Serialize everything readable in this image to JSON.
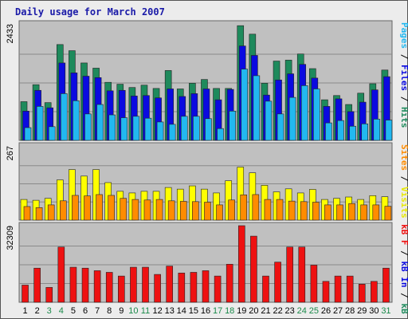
{
  "chart_data": {
    "type": "bar",
    "title": "Daily usage for March 2007",
    "days": [
      "1",
      "2",
      "3",
      "4",
      "5",
      "6",
      "7",
      "8",
      "9",
      "10",
      "11",
      "12",
      "13",
      "14",
      "15",
      "16",
      "17",
      "18",
      "19",
      "20",
      "21",
      "22",
      "23",
      "24",
      "25",
      "26",
      "27",
      "28",
      "29",
      "30",
      "31"
    ],
    "weekend_days": [
      "3",
      "4",
      "10",
      "11",
      "17",
      "18",
      "24",
      "25",
      "31"
    ],
    "colors": {
      "background": "#ececec",
      "panel": "#c0c0c0",
      "title": "#1a1aa8",
      "weekday_label": "#000000",
      "weekend_label": "#1a8a4a"
    },
    "panels": [
      {
        "name": "hits-files-pages",
        "ymax_label": "2433",
        "ymax": 2433,
        "series": [
          {
            "name": "Hits",
            "color": "#1e8a5c",
            "values": [
              820,
              1180,
              800,
              2030,
              1900,
              1640,
              1530,
              1230,
              1190,
              1120,
              1170,
              1100,
              1480,
              1090,
              1210,
              1290,
              1100,
              1100,
              2430,
              2250,
              1210,
              1680,
              1700,
              1830,
              1520,
              860,
              950,
              760,
              1000,
              1200,
              1490
            ]
          },
          {
            "name": "Files",
            "color": "#0a0ae0",
            "values": [
              620,
              1060,
              690,
              1640,
              1430,
              1360,
              1330,
              1050,
              1060,
              940,
              950,
              900,
              1090,
              930,
              990,
              1090,
              860,
              1080,
              2000,
              1800,
              960,
              1280,
              1410,
              1610,
              1320,
              720,
              880,
              610,
              810,
              1070,
              1350
            ]
          },
          {
            "name": "Pages",
            "color": "#22b8f0",
            "values": [
              270,
              720,
              290,
              990,
              840,
              560,
              760,
              540,
              480,
              510,
              470,
              390,
              340,
              510,
              510,
              460,
              250,
              620,
              1510,
              1370,
              830,
              560,
              910,
              1160,
              1090,
              370,
              420,
              300,
              350,
              450,
              430
            ]
          }
        ],
        "label_parts": [
          {
            "text": "Pages",
            "color": "#22b8f0"
          },
          {
            "text": " / ",
            "color": "#000000"
          },
          {
            "text": "Files",
            "color": "#0a0ae0"
          },
          {
            "text": " / ",
            "color": "#000000"
          },
          {
            "text": "Hits",
            "color": "#1e8a5c"
          }
        ]
      },
      {
        "name": "visits-sites",
        "ymax_label": "267",
        "ymax": 267,
        "series": [
          {
            "name": "Visits",
            "color": "#ffff00",
            "values": [
              76,
              73,
              80,
              148,
              186,
              162,
              186,
              138,
              106,
              100,
              106,
              106,
              120,
              114,
              126,
              114,
              100,
              145,
              195,
              174,
              128,
              104,
              115,
              100,
              113,
              76,
              80,
              85,
              76,
              90,
              86
            ]
          },
          {
            "name": "Sites",
            "color": "#ff8c00",
            "values": [
              50,
              46,
              56,
              71,
              91,
              89,
              94,
              91,
              80,
              76,
              74,
              76,
              71,
              69,
              68,
              66,
              56,
              74,
              93,
              94,
              76,
              76,
              70,
              68,
              66,
              56,
              56,
              61,
              56,
              56,
              51
            ]
          }
        ],
        "label_parts": [
          {
            "text": "Sites",
            "color": "#ff8c00"
          },
          {
            "text": " / ",
            "color": "#000000"
          },
          {
            "text": "Visits",
            "color": "#e8e800"
          }
        ]
      },
      {
        "name": "kb",
        "ymax_label": "32309",
        "ymax": 32309,
        "series": [
          {
            "name": "kB F",
            "color": "#ee1111",
            "values": [
              7400,
              14700,
              6400,
              23800,
              15100,
              14700,
              13600,
              12900,
              11300,
              15100,
              15100,
              12000,
              15600,
              12600,
              12900,
              13600,
              11300,
              16400,
              33000,
              28500,
              11300,
              17300,
              23800,
              23800,
              16000,
              9000,
              11300,
              11300,
              7800,
              9000,
              14700
            ]
          }
        ],
        "label_parts": [
          {
            "text": "kB F",
            "color": "#ee1111"
          },
          {
            "text": " / ",
            "color": "#000000"
          },
          {
            "text": "kB In",
            "color": "#0a0ae0"
          },
          {
            "text": " / ",
            "color": "#000000"
          },
          {
            "text": "kB Out",
            "color": "#1e8a5c"
          }
        ]
      }
    ]
  }
}
